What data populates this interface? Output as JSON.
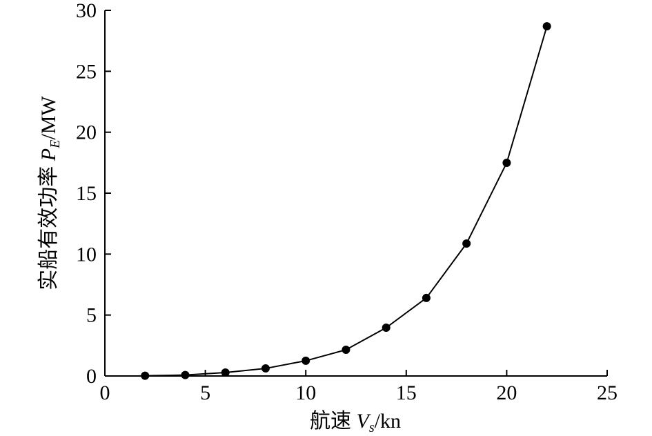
{
  "chart_data": {
    "type": "line",
    "xlabel": [
      "航速 ",
      "V",
      "s",
      "/kn"
    ],
    "ylabel": [
      "实船有效功率 ",
      "P",
      "E",
      "/MW"
    ],
    "x": [
      2,
      4,
      6,
      8,
      10,
      12,
      14,
      16,
      18,
      20,
      22
    ],
    "series": [
      {
        "color": "#000000",
        "values": [
          0.02,
          0.08,
          0.28,
          0.62,
          1.25,
          2.15,
          3.96,
          6.4,
          10.87,
          17.49,
          28.69
        ]
      }
    ],
    "xlim": [
      0,
      25
    ],
    "xticks": [
      0,
      5,
      10,
      15,
      20,
      25
    ],
    "ylim": [
      0,
      30
    ],
    "yticks": [
      0,
      5,
      10,
      15,
      20,
      25,
      30
    ],
    "grid": false
  }
}
